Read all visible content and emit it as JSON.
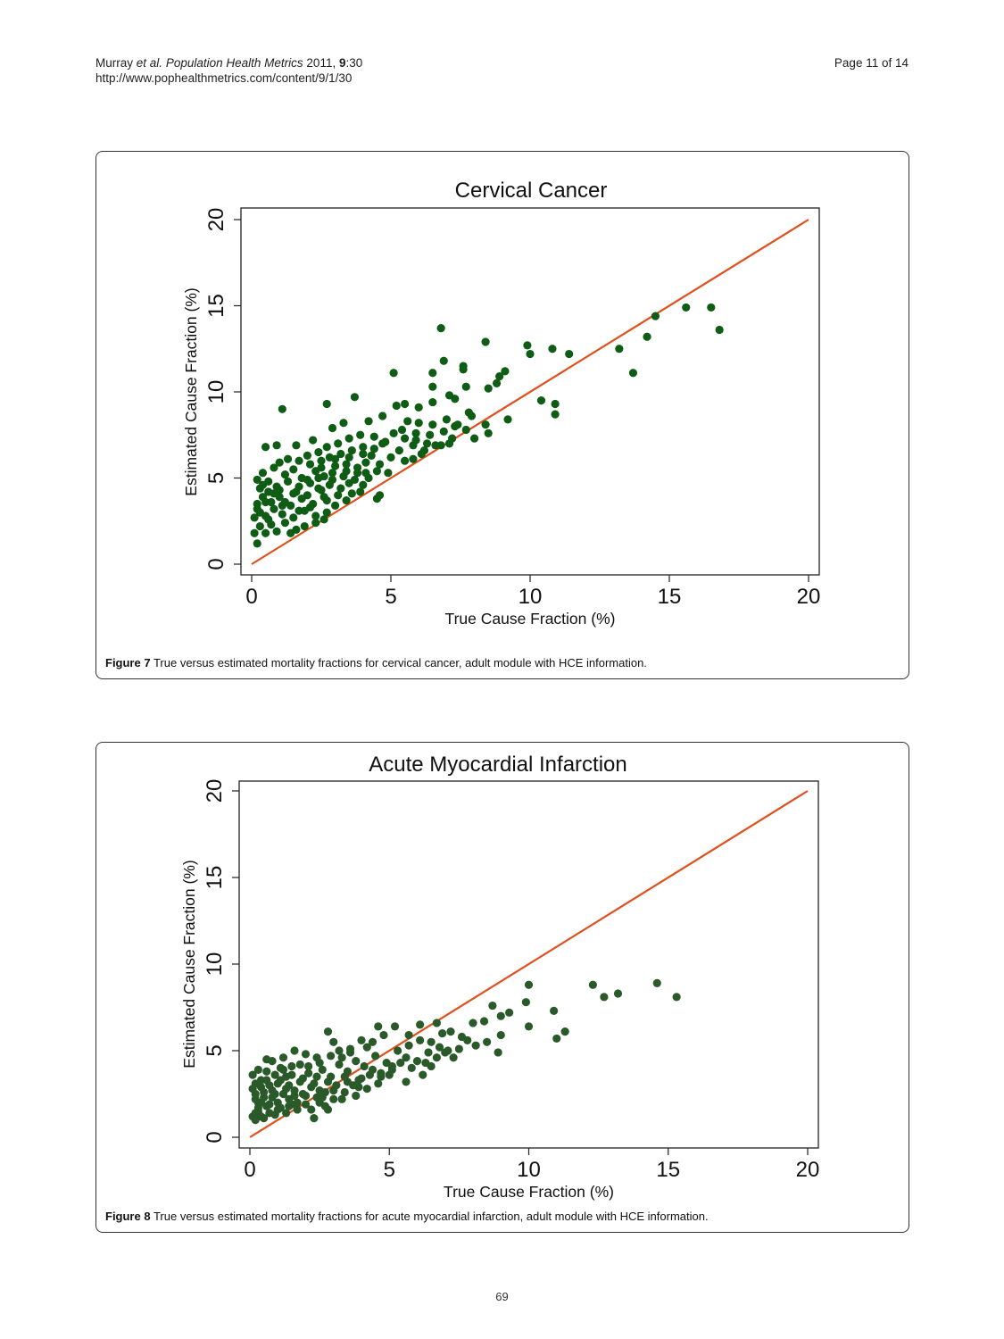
{
  "header": {
    "author": "Murray",
    "etal": "et al.",
    "journal": "Population Health Metrics",
    "year": "2011,",
    "volume": "9",
    "issue": ":30",
    "url": "http://www.pophealthmetrics.com/content/9/1/30",
    "page": "Page 11 of 14"
  },
  "figures": [
    {
      "label": "Figure 7",
      "caption": "True versus estimated mortality fractions for cervical cancer, adult module with HCE information."
    },
    {
      "label": "Figure 8",
      "caption": "True versus estimated mortality fractions for acute myocardial infarction, adult module with HCE information."
    }
  ],
  "footer": {
    "page_number": "69"
  },
  "colors": {
    "points_fig7": "#0f5c14",
    "points_fig8": "#2a5a2a",
    "line": "#e0501c"
  },
  "chart_data": [
    {
      "type": "scatter",
      "title": "Cervical Cancer",
      "xlabel": "True Cause Fraction (%)",
      "ylabel": "Estimated Cause Fraction (%)",
      "xlim": [
        0,
        20
      ],
      "ylim": [
        0,
        20
      ],
      "xticks": [
        "0",
        "5",
        "10",
        "15",
        "20"
      ],
      "yticks": [
        "0",
        "5",
        "10",
        "15",
        "20"
      ],
      "reference_line": {
        "from": [
          0,
          0
        ],
        "to": [
          20,
          20
        ]
      },
      "grid": false,
      "points": [
        [
          6.8,
          13.7
        ],
        [
          8.4,
          12.9
        ],
        [
          9.9,
          12.7
        ],
        [
          10.0,
          12.2
        ],
        [
          10.8,
          12.5
        ],
        [
          11.4,
          12.2
        ],
        [
          13.2,
          12.5
        ],
        [
          14.2,
          13.2
        ],
        [
          14.5,
          14.4
        ],
        [
          15.6,
          14.9
        ],
        [
          16.5,
          14.9
        ],
        [
          16.8,
          13.6
        ],
        [
          13.7,
          11.1
        ],
        [
          10.4,
          9.5
        ],
        [
          10.9,
          9.3
        ],
        [
          10.9,
          8.7
        ],
        [
          9.2,
          8.4
        ],
        [
          8.5,
          7.6
        ],
        [
          1.1,
          9.0
        ],
        [
          3.7,
          9.7
        ],
        [
          5.1,
          11.1
        ],
        [
          6.9,
          11.8
        ],
        [
          7.6,
          11.5
        ],
        [
          2.7,
          9.3
        ],
        [
          6.5,
          11.1
        ],
        [
          7.6,
          11.3
        ],
        [
          6.5,
          10.3
        ],
        [
          7.7,
          10.3
        ],
        [
          8.5,
          10.2
        ],
        [
          8.8,
          10.5
        ],
        [
          9.1,
          11.2
        ],
        [
          8.9,
          10.9
        ],
        [
          7.1,
          9.8
        ],
        [
          7.3,
          9.6
        ],
        [
          6.5,
          9.4
        ],
        [
          5.5,
          9.3
        ],
        [
          5.2,
          9.2
        ],
        [
          6.0,
          9.1
        ],
        [
          5.6,
          8.3
        ],
        [
          7.8,
          8.8
        ],
        [
          8.4,
          8.1
        ],
        [
          8.0,
          7.3
        ],
        [
          7.1,
          7.0
        ],
        [
          6.8,
          6.9
        ],
        [
          6.2,
          6.6
        ],
        [
          5.8,
          6.1
        ],
        [
          5.5,
          6.0
        ],
        [
          4.6,
          4.0
        ],
        [
          4.5,
          3.8
        ],
        [
          3.9,
          4.2
        ],
        [
          3.4,
          3.7
        ],
        [
          2.7,
          3.0
        ],
        [
          2.6,
          2.6
        ],
        [
          2.3,
          2.4
        ],
        [
          1.9,
          2.2
        ],
        [
          1.6,
          2.0
        ],
        [
          1.4,
          1.8
        ],
        [
          0.5,
          6.8
        ],
        [
          0.9,
          6.9
        ],
        [
          1.6,
          6.9
        ],
        [
          2.2,
          7.2
        ],
        [
          2.9,
          7.9
        ],
        [
          3.3,
          8.2
        ],
        [
          4.2,
          8.3
        ],
        [
          4.7,
          8.6
        ],
        [
          6.0,
          8.2
        ],
        [
          6.5,
          8.1
        ],
        [
          7.0,
          8.4
        ],
        [
          7.4,
          8.1
        ],
        [
          2.1,
          5.8
        ],
        [
          2.5,
          5.6
        ],
        [
          2.8,
          6.2
        ],
        [
          3.2,
          6.4
        ],
        [
          3.6,
          6.6
        ],
        [
          4.0,
          6.8
        ],
        [
          4.3,
          6.3
        ],
        [
          4.8,
          7.1
        ],
        [
          5.1,
          7.6
        ],
        [
          5.5,
          7.3
        ],
        [
          5.9,
          7.2
        ],
        [
          6.3,
          7.0
        ],
        [
          1.2,
          5.2
        ],
        [
          1.5,
          5.5
        ],
        [
          1.8,
          5.0
        ],
        [
          2.3,
          5.4
        ],
        [
          2.6,
          5.1
        ],
        [
          3.0,
          5.7
        ],
        [
          3.4,
          5.8
        ],
        [
          3.8,
          5.6
        ],
        [
          4.1,
          5.9
        ],
        [
          4.5,
          5.4
        ],
        [
          4.9,
          5.3
        ],
        [
          0.3,
          4.4
        ],
        [
          0.6,
          4.8
        ],
        [
          0.9,
          4.5
        ],
        [
          1.3,
          4.8
        ],
        [
          1.7,
          4.5
        ],
        [
          2.1,
          4.7
        ],
        [
          2.5,
          4.3
        ],
        [
          2.9,
          4.9
        ],
        [
          3.2,
          4.4
        ],
        [
          3.6,
          4.1
        ],
        [
          4.0,
          4.6
        ],
        [
          0.2,
          3.5
        ],
        [
          0.4,
          3.9
        ],
        [
          0.7,
          3.6
        ],
        [
          1.0,
          3.9
        ],
        [
          1.4,
          3.4
        ],
        [
          1.8,
          3.8
        ],
        [
          2.2,
          3.5
        ],
        [
          2.6,
          3.9
        ],
        [
          3.0,
          3.4
        ],
        [
          0.1,
          2.7
        ],
        [
          0.3,
          3.0
        ],
        [
          0.5,
          2.8
        ],
        [
          0.8,
          3.2
        ],
        [
          1.1,
          2.9
        ],
        [
          1.5,
          2.7
        ],
        [
          1.9,
          3.1
        ],
        [
          2.3,
          2.8
        ],
        [
          0.1,
          1.8
        ],
        [
          0.2,
          1.2
        ],
        [
          0.3,
          2.2
        ],
        [
          0.5,
          1.8
        ],
        [
          0.7,
          2.3
        ],
        [
          0.9,
          1.9
        ],
        [
          1.2,
          2.4
        ],
        [
          0.2,
          4.9
        ],
        [
          0.4,
          5.3
        ],
        [
          0.8,
          5.6
        ],
        [
          1.0,
          5.9
        ],
        [
          1.3,
          6.1
        ],
        [
          1.7,
          6.0
        ],
        [
          2.0,
          6.3
        ],
        [
          2.4,
          6.5
        ],
        [
          2.7,
          6.8
        ],
        [
          3.1,
          7.0
        ],
        [
          3.5,
          7.3
        ],
        [
          3.9,
          7.5
        ],
        [
          4.4,
          7.4
        ],
        [
          4.7,
          7.0
        ],
        [
          5.3,
          6.6
        ],
        [
          5.8,
          6.9
        ],
        [
          6.1,
          6.4
        ],
        [
          6.6,
          6.9
        ],
        [
          7.2,
          7.3
        ],
        [
          7.7,
          7.8
        ],
        [
          3.8,
          5.3
        ],
        [
          4.2,
          5.0
        ],
        [
          4.6,
          5.8
        ],
        [
          5.0,
          6.2
        ],
        [
          0.6,
          2.6
        ],
        [
          0.8,
          4.1
        ],
        [
          1.1,
          3.4
        ],
        [
          1.6,
          4.2
        ],
        [
          2.0,
          4.0
        ],
        [
          2.4,
          4.4
        ],
        [
          2.8,
          4.6
        ],
        [
          3.3,
          5.1
        ],
        [
          3.7,
          4.9
        ],
        [
          4.1,
          5.3
        ],
        [
          5.4,
          7.8
        ],
        [
          5.9,
          7.6
        ],
        [
          6.4,
          7.5
        ],
        [
          6.9,
          7.7
        ],
        [
          7.3,
          8.0
        ],
        [
          7.9,
          8.6
        ],
        [
          2.5,
          6.0
        ],
        [
          3.0,
          6.1
        ],
        [
          3.5,
          6.2
        ],
        [
          4.0,
          6.4
        ],
        [
          4.4,
          6.7
        ],
        [
          1.0,
          4.3
        ],
        [
          1.5,
          4.1
        ],
        [
          2.0,
          4.9
        ],
        [
          2.4,
          5.0
        ],
        [
          2.9,
          5.3
        ],
        [
          3.4,
          5.4
        ],
        [
          0.2,
          3.2
        ],
        [
          0.5,
          3.6
        ],
        [
          0.6,
          4.2
        ],
        [
          0.4,
          4.6
        ],
        [
          1.2,
          3.6
        ],
        [
          1.7,
          3.1
        ],
        [
          2.1,
          3.3
        ],
        [
          2.7,
          3.7
        ],
        [
          3.1,
          4.0
        ],
        [
          3.5,
          4.7
        ]
      ]
    },
    {
      "type": "scatter",
      "title": "Acute Myocardial Infarction",
      "xlabel": "True Cause Fraction (%)",
      "ylabel": "Estimated Cause Fraction (%)",
      "xlim": [
        0,
        20
      ],
      "ylim": [
        0,
        20
      ],
      "xticks": [
        "0",
        "5",
        "10",
        "15",
        "20"
      ],
      "yticks": [
        "0",
        "5",
        "10",
        "15",
        "20"
      ],
      "reference_line": {
        "from": [
          0,
          0
        ],
        "to": [
          20,
          20
        ]
      },
      "grid": false,
      "points": [
        [
          12.3,
          8.8
        ],
        [
          12.7,
          8.1
        ],
        [
          13.2,
          8.3
        ],
        [
          14.6,
          8.9
        ],
        [
          15.3,
          8.1
        ],
        [
          10.0,
          8.8
        ],
        [
          9.9,
          7.8
        ],
        [
          10.0,
          6.4
        ],
        [
          10.9,
          7.3
        ],
        [
          11.0,
          5.7
        ],
        [
          11.3,
          6.1
        ],
        [
          9.3,
          7.2
        ],
        [
          9.0,
          7.0
        ],
        [
          8.7,
          7.6
        ],
        [
          8.4,
          6.7
        ],
        [
          8.0,
          6.6
        ],
        [
          9.0,
          5.9
        ],
        [
          8.9,
          4.9
        ],
        [
          8.5,
          5.5
        ],
        [
          8.1,
          5.3
        ],
        [
          7.8,
          5.6
        ],
        [
          7.5,
          5.1
        ],
        [
          7.1,
          5.0
        ],
        [
          6.8,
          5.2
        ],
        [
          6.4,
          4.9
        ],
        [
          6.0,
          4.4
        ],
        [
          5.6,
          4.6
        ],
        [
          5.1,
          4.1
        ],
        [
          4.7,
          3.7
        ],
        [
          4.3,
          3.6
        ],
        [
          3.9,
          3.3
        ],
        [
          3.5,
          3.2
        ],
        [
          3.1,
          3.0
        ],
        [
          2.7,
          2.6
        ],
        [
          2.4,
          2.3
        ],
        [
          2.0,
          2.4
        ],
        [
          1.7,
          2.0
        ],
        [
          1.4,
          1.8
        ],
        [
          1.0,
          1.6
        ],
        [
          0.7,
          1.4
        ],
        [
          0.4,
          1.2
        ],
        [
          0.2,
          1.0
        ],
        [
          2.3,
          1.1
        ],
        [
          2.8,
          1.6
        ],
        [
          3.3,
          2.2
        ],
        [
          3.8,
          2.4
        ],
        [
          4.2,
          2.8
        ],
        [
          4.6,
          3.1
        ],
        [
          5.0,
          3.6
        ],
        [
          5.6,
          3.2
        ],
        [
          6.2,
          3.6
        ],
        [
          6.5,
          4.1
        ],
        [
          7.3,
          4.6
        ],
        [
          7.6,
          5.8
        ],
        [
          7.2,
          6.1
        ],
        [
          6.7,
          6.6
        ],
        [
          6.1,
          6.5
        ],
        [
          5.7,
          5.9
        ],
        [
          5.2,
          6.4
        ],
        [
          4.8,
          5.9
        ],
        [
          4.4,
          5.5
        ],
        [
          4.0,
          5.6
        ],
        [
          3.6,
          5.1
        ],
        [
          3.2,
          5.0
        ],
        [
          2.8,
          6.1
        ],
        [
          2.4,
          4.6
        ],
        [
          2.0,
          4.8
        ],
        [
          1.6,
          5.0
        ],
        [
          1.2,
          4.6
        ],
        [
          0.8,
          4.4
        ],
        [
          0.6,
          4.5
        ],
        [
          0.3,
          3.9
        ],
        [
          0.1,
          3.6
        ],
        [
          0.1,
          2.8
        ],
        [
          0.2,
          2.2
        ],
        [
          0.3,
          1.7
        ],
        [
          0.5,
          2.6
        ],
        [
          0.7,
          3.0
        ],
        [
          0.9,
          2.5
        ],
        [
          1.1,
          3.3
        ],
        [
          1.3,
          2.8
        ],
        [
          1.5,
          3.6
        ],
        [
          1.8,
          3.2
        ],
        [
          2.1,
          3.7
        ],
        [
          2.3,
          3.1
        ],
        [
          2.6,
          3.9
        ],
        [
          2.9,
          3.5
        ],
        [
          3.2,
          4.2
        ],
        [
          3.5,
          3.8
        ],
        [
          3.8,
          4.4
        ],
        [
          4.1,
          4.1
        ],
        [
          4.5,
          4.7
        ],
        [
          4.9,
          4.3
        ],
        [
          5.3,
          5.0
        ],
        [
          5.7,
          5.3
        ],
        [
          6.1,
          5.6
        ],
        [
          6.5,
          5.5
        ],
        [
          6.9,
          6.0
        ],
        [
          0.2,
          1.4
        ],
        [
          0.4,
          2.0
        ],
        [
          0.6,
          1.8
        ],
        [
          0.8,
          2.3
        ],
        [
          1.0,
          2.0
        ],
        [
          1.2,
          2.5
        ],
        [
          1.4,
          2.2
        ],
        [
          1.6,
          2.7
        ],
        [
          1.9,
          2.5
        ],
        [
          2.2,
          2.9
        ],
        [
          2.5,
          2.7
        ],
        [
          2.8,
          3.2
        ],
        [
          3.0,
          2.7
        ],
        [
          3.4,
          3.5
        ],
        [
          3.7,
          3.0
        ],
        [
          4.0,
          3.4
        ],
        [
          4.4,
          3.9
        ],
        [
          4.7,
          3.5
        ],
        [
          5.1,
          3.9
        ],
        [
          5.4,
          4.3
        ],
        [
          5.8,
          4.0
        ],
        [
          6.3,
          4.3
        ],
        [
          6.7,
          4.6
        ],
        [
          7.0,
          4.9
        ],
        [
          0.1,
          1.2
        ],
        [
          0.3,
          1.5
        ],
        [
          0.5,
          1.1
        ],
        [
          0.7,
          1.9
        ],
        [
          0.9,
          1.3
        ],
        [
          1.1,
          1.7
        ],
        [
          1.3,
          1.4
        ],
        [
          1.5,
          1.9
        ],
        [
          1.7,
          1.6
        ],
        [
          2.0,
          1.9
        ],
        [
          2.2,
          1.6
        ],
        [
          2.5,
          2.0
        ],
        [
          2.7,
          1.8
        ],
        [
          3.0,
          2.2
        ],
        [
          0.4,
          2.9
        ],
        [
          0.6,
          3.3
        ],
        [
          0.9,
          3.6
        ],
        [
          1.2,
          3.9
        ],
        [
          1.5,
          4.1
        ],
        [
          1.8,
          4.2
        ],
        [
          2.1,
          4.1
        ],
        [
          2.5,
          4.3
        ],
        [
          2.9,
          4.7
        ],
        [
          3.3,
          4.6
        ],
        [
          3.6,
          4.9
        ],
        [
          4.2,
          5.2
        ],
        [
          4.6,
          6.4
        ],
        [
          3.0,
          5.5
        ],
        [
          1.4,
          3.0
        ],
        [
          1.9,
          3.4
        ],
        [
          2.4,
          3.5
        ],
        [
          0.2,
          2.5
        ],
        [
          0.4,
          3.3
        ],
        [
          0.8,
          2.7
        ],
        [
          1.0,
          3.1
        ],
        [
          1.6,
          2.4
        ],
        [
          2.6,
          2.3
        ],
        [
          3.4,
          2.6
        ],
        [
          3.9,
          2.9
        ],
        [
          0.3,
          2.0
        ],
        [
          0.5,
          2.3
        ],
        [
          0.2,
          3.1
        ],
        [
          0.6,
          3.8
        ],
        [
          1.1,
          4.0
        ],
        [
          1.3,
          3.5
        ]
      ]
    }
  ]
}
